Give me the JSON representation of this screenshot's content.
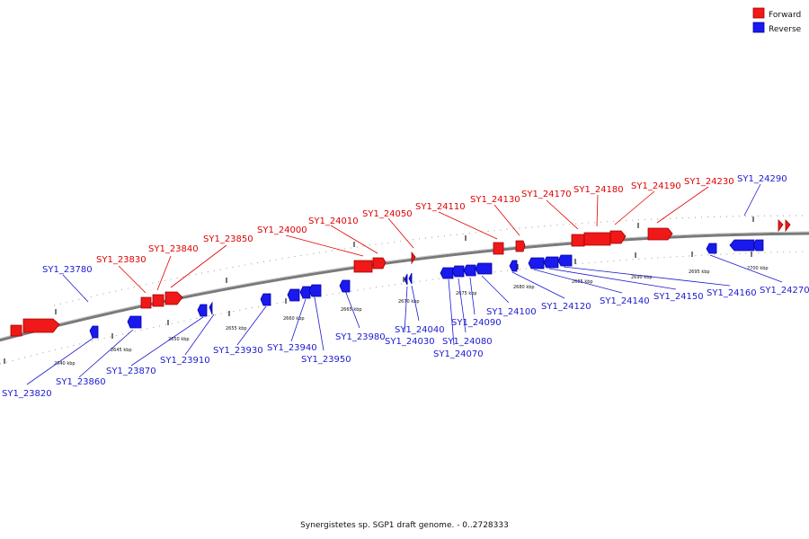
{
  "caption": "Synergistetes sp. SGP1 draft genome. - 0..2728333",
  "legend": {
    "forward_label": "Forward",
    "reverse_label": "Reverse",
    "forward_color": "#f01818",
    "reverse_color": "#1a1aee",
    "forward_edge": "#b80000",
    "reverse_edge": "#0000a8",
    "placement": "top-right"
  },
  "backbone_color": "#808080",
  "tick_labels": [
    "2640 kbp",
    "2645 kbp",
    "2650 kbp",
    "2655 kbp",
    "2660 kbp",
    "2665 kbp",
    "2670 kbp",
    "2675 kbp",
    "2680 kbp",
    "2685 kbp",
    "2690 kbp",
    "2695 kbp",
    "2700 kbp"
  ],
  "forward_genes": [
    "SY1_23830",
    "SY1_23840",
    "SY1_23850",
    "SY1_24000",
    "SY1_24010",
    "SY1_24050",
    "SY1_24110",
    "SY1_24130",
    "SY1_24170",
    "SY1_24180",
    "SY1_24190",
    "SY1_24230"
  ],
  "reverse_genes": [
    "SY1_23780",
    "SY1_23820",
    "SY1_23860",
    "SY1_23870",
    "SY1_23910",
    "SY1_23930",
    "SY1_23940",
    "SY1_23950",
    "SY1_23980",
    "SY1_24040",
    "SY1_24030",
    "SY1_24080",
    "SY1_24070",
    "SY1_24090",
    "SY1_24100",
    "SY1_24120",
    "SY1_24140",
    "SY1_24150",
    "SY1_24160",
    "SY1_24270",
    "SY1_24290"
  ]
}
